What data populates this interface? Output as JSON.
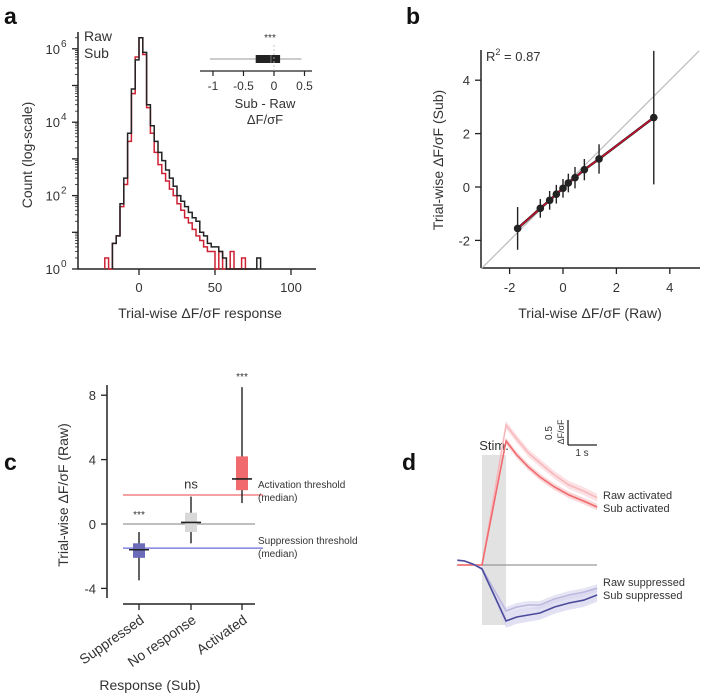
{
  "panels": {
    "a": {
      "letter": "a"
    },
    "b": {
      "letter": "b"
    },
    "c": {
      "letter": "c"
    },
    "d": {
      "letter": "d"
    }
  },
  "colors": {
    "raw": "#222222",
    "sub": "#cc2233",
    "fit": "#c8102e",
    "activated": "#f06a6e",
    "suppressed": "#6b6bb8",
    "no_response": "#d8d8d8",
    "activated_light": "#f7b8bd",
    "suppressed_light": "#bdb8de",
    "suppressed_dark": "#4b4b9c",
    "stim_shade": "#e2e2e2"
  },
  "chart_data": [
    {
      "panel": "a",
      "type": "histogram",
      "xlabel": "Trial-wise ΔF/σF response",
      "ylabel": "Count (log-scale)",
      "yscale": "log",
      "xlim": [
        -40,
        115
      ],
      "ylim": [
        1,
        3000000
      ],
      "xticks": [
        "0",
        "50",
        "100"
      ],
      "xtick_values": [
        0,
        50,
        100
      ],
      "yticks": [
        {
          "base": "10",
          "exp": "0",
          "value": 1
        },
        {
          "base": "10",
          "exp": "2",
          "value": 100
        },
        {
          "base": "10",
          "exp": "4",
          "value": 10000
        },
        {
          "base": "10",
          "exp": "6",
          "value": 1000000
        }
      ],
      "legend": [
        "Raw",
        "Sub"
      ],
      "legend_placement": "top-left",
      "bin_width": 2.5,
      "series": [
        {
          "name": "Raw",
          "bin_start": -17.5,
          "counts": [
            5,
            8,
            60,
            300,
            5000,
            80000,
            500000,
            2000000,
            800000,
            30000,
            8000,
            3000,
            1500,
            900,
            500,
            300,
            180,
            100,
            70,
            50,
            35,
            25,
            20,
            10,
            8,
            5,
            4,
            4,
            3,
            2,
            1,
            1,
            1,
            1,
            1,
            1,
            1,
            1,
            2
          ]
        },
        {
          "name": "Sub",
          "bin_start": -22.5,
          "counts": [
            2,
            1,
            5,
            8,
            50,
            200,
            3000,
            60000,
            600000,
            2000000,
            700000,
            25000,
            5000,
            1500,
            700,
            400,
            250,
            150,
            100,
            60,
            40,
            25,
            18,
            12,
            8,
            6,
            4,
            3,
            3,
            1,
            3,
            1,
            1,
            3,
            1,
            1,
            2,
            1
          ]
        }
      ],
      "inset": {
        "type": "box",
        "xlabel_line1": "Sub - Raw",
        "xlabel_line2": "ΔF/σF",
        "xticks": [
          "-1",
          "-0.5",
          "0",
          "0.5"
        ],
        "xtick_values": [
          -1,
          -0.5,
          0,
          0.5
        ],
        "xlim": [
          -1.2,
          0.7
        ],
        "box": {
          "q1": -0.3,
          "median": -0.05,
          "q3": 0.1,
          "whisker_low": -1.05,
          "whisker_high": 0.45
        },
        "significance": "***"
      }
    },
    {
      "panel": "b",
      "type": "scatter",
      "xlabel": "Trial-wise ΔF/σF (Raw)",
      "ylabel": "Trial-wise ΔF/σF (Sub)",
      "xlim": [
        -3.07,
        5.1
      ],
      "ylim": [
        -3.05,
        5.15
      ],
      "xticks": [
        "-2",
        "0",
        "2",
        "4"
      ],
      "xtick_values": [
        -2,
        0,
        2,
        4
      ],
      "yticks": [
        "-2",
        "0",
        "2",
        "4"
      ],
      "ytick_values": [
        -2,
        0,
        2,
        4
      ],
      "annotation": {
        "text": "R",
        "sup": "2",
        "rest": " = 0.87"
      },
      "identity_line": true,
      "points": [
        {
          "x": -1.7,
          "y": -1.55,
          "err": 0.8
        },
        {
          "x": -0.85,
          "y": -0.8,
          "err": 0.35
        },
        {
          "x": -0.5,
          "y": -0.5,
          "err": 0.35
        },
        {
          "x": -0.25,
          "y": -0.27,
          "err": 0.35
        },
        {
          "x": 0.0,
          "y": -0.05,
          "err": 0.35
        },
        {
          "x": 0.2,
          "y": 0.15,
          "err": 0.35
        },
        {
          "x": 0.45,
          "y": 0.35,
          "err": 0.4
        },
        {
          "x": 0.8,
          "y": 0.65,
          "err": 0.4
        },
        {
          "x": 1.35,
          "y": 1.05,
          "err": 0.55
        },
        {
          "x": 3.4,
          "y": 2.6,
          "err": 2.5
        }
      ]
    },
    {
      "panel": "c",
      "type": "box",
      "xlabel": "Response (Sub)",
      "ylabel": "Trial-wise ΔF/σF (Raw)",
      "ylim": [
        -4.5,
        9.1
      ],
      "yticks": [
        "-4",
        "0",
        "4",
        "8"
      ],
      "ytick_values": [
        -4,
        0,
        4,
        8
      ],
      "categories": [
        "Suppressed",
        "No response",
        "Activated"
      ],
      "boxes": [
        {
          "q1": -2.1,
          "median": -1.6,
          "q3": -1.2,
          "whisker_low": -3.5,
          "whisker_high": -0.5,
          "significance": "***"
        },
        {
          "q1": -0.5,
          "median": 0.1,
          "q3": 0.7,
          "whisker_low": -1.2,
          "whisker_high": 1.7,
          "significance": "ns"
        },
        {
          "q1": 2.1,
          "median": 2.8,
          "q3": 4.2,
          "whisker_low": 1.3,
          "whisker_high": 8.5,
          "significance": "***"
        }
      ],
      "thresholds": [
        {
          "value": 1.8,
          "label1": "Activation threshold",
          "label2": "(median)"
        },
        {
          "value": -1.5,
          "label1": "Suppression threshold",
          "label2": "(median)"
        }
      ]
    },
    {
      "panel": "d",
      "type": "line",
      "stim_label": "Stim.",
      "stim_window": [
        0,
        0.83
      ],
      "scalebar": {
        "y_value": "0.5",
        "y_unit": "ΔF/σF",
        "x_label": "1 s"
      },
      "time": [
        -0.85,
        -0.6,
        -0.3,
        0,
        0.83,
        1.2,
        1.6,
        2.0,
        2.5,
        3.0,
        3.5,
        3.97
      ],
      "series": [
        {
          "name": "Raw activated",
          "values": [
            0,
            0,
            0,
            0,
            3.5,
            3.15,
            2.8,
            2.55,
            2.25,
            2.0,
            1.85,
            1.68
          ],
          "sem": 0.1
        },
        {
          "name": "Sub activated",
          "values": [
            0,
            0,
            0,
            0,
            3.1,
            2.75,
            2.45,
            2.2,
            1.95,
            1.75,
            1.6,
            1.45
          ],
          "sem": 0.08
        },
        {
          "name": "Raw suppressed",
          "values": [
            0.12,
            0.1,
            0.02,
            -0.08,
            -1.15,
            -1.05,
            -1.0,
            -1.0,
            -0.85,
            -0.75,
            -0.68,
            -0.58
          ],
          "sem": 0.1
        },
        {
          "name": "Sub suppressed",
          "values": [
            0.12,
            0.1,
            0.02,
            -0.1,
            -1.4,
            -1.3,
            -1.25,
            -1.2,
            -1.05,
            -0.95,
            -0.88,
            -0.75
          ],
          "sem": 0.17
        }
      ]
    }
  ]
}
